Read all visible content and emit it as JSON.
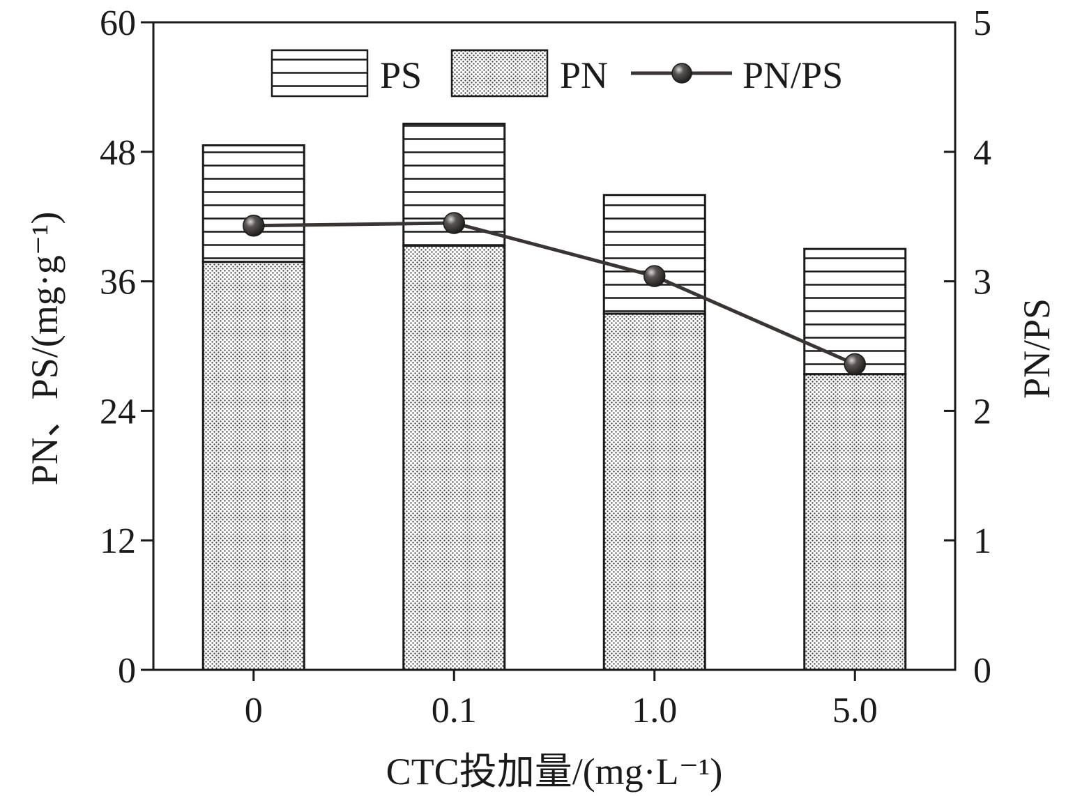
{
  "chart_data": {
    "type": "bar",
    "stacked": true,
    "categories": [
      "0",
      "0.1",
      "1.0",
      "5.0"
    ],
    "series": [
      {
        "name": "PN",
        "axis": "left",
        "kind": "bar",
        "values": [
          37.8,
          39.3,
          33.0,
          27.4
        ],
        "pattern": "dots"
      },
      {
        "name": "PS",
        "axis": "left",
        "kind": "bar",
        "values": [
          10.8,
          11.3,
          11.0,
          11.6
        ],
        "pattern": "horizontal-lines"
      },
      {
        "name": "PN/PS",
        "axis": "right",
        "kind": "line",
        "values": [
          3.43,
          3.45,
          3.04,
          2.36
        ]
      }
    ],
    "xlabel": "CTC投加量/(mg·L⁻¹)",
    "ylabel": "PN、PS/(mg·g⁻¹)",
    "y2label": "PN/PS",
    "ylim": [
      0,
      60
    ],
    "y2lim": [
      0,
      5
    ],
    "yticks": [
      "0",
      "12",
      "24",
      "36",
      "48",
      "60"
    ],
    "y2ticks": [
      "0",
      "1",
      "2",
      "3",
      "4",
      "5"
    ],
    "legend": [
      "PS",
      "PN",
      "PN/PS"
    ],
    "legend_position": "top-center",
    "grid": false,
    "colors": {
      "line": "#3a3533",
      "marker": "#2b2826",
      "outline": "#1a1a1a"
    }
  }
}
